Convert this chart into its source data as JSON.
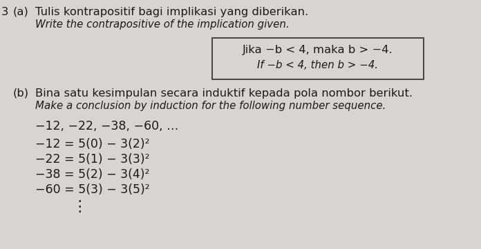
{
  "bg_color": "#d8d5d0",
  "part_a_label": "(a)  ",
  "part_a_text_line1": "Tulis kontrapositif bagi implikasi yang diberikan.",
  "part_a_text_line2": "Write the contrapositive of the implication given.",
  "box_line1": "Jika −b < 4, maka b > −4.",
  "box_line2": "If −b < 4, then b > −4.",
  "part_b_label": "(b)",
  "part_b_text_line1": "Bina satu kesimpulan secara induktif kepada pola nombor berikut.",
  "part_b_text_line2": "Make a conclusion by induction for the following number sequence.",
  "sequence_line": "−12, −22, −38, −60, …",
  "eq1": "−12 = 5(0) − 3(2)²",
  "eq2": "−22 = 5(1) − 3(3)²",
  "eq3": "−38 = 5(2) − 3(4)²",
  "eq4": "−60 = 5(3) − 3(5)²",
  "vdots": "⋮",
  "prefix3": "3",
  "text_color": "#1a1a1a",
  "box_border_color": "#444444",
  "font_size_main": 11.8,
  "font_size_italic": 10.8,
  "font_size_eq": 12.5,
  "font_size_small": 12.5
}
